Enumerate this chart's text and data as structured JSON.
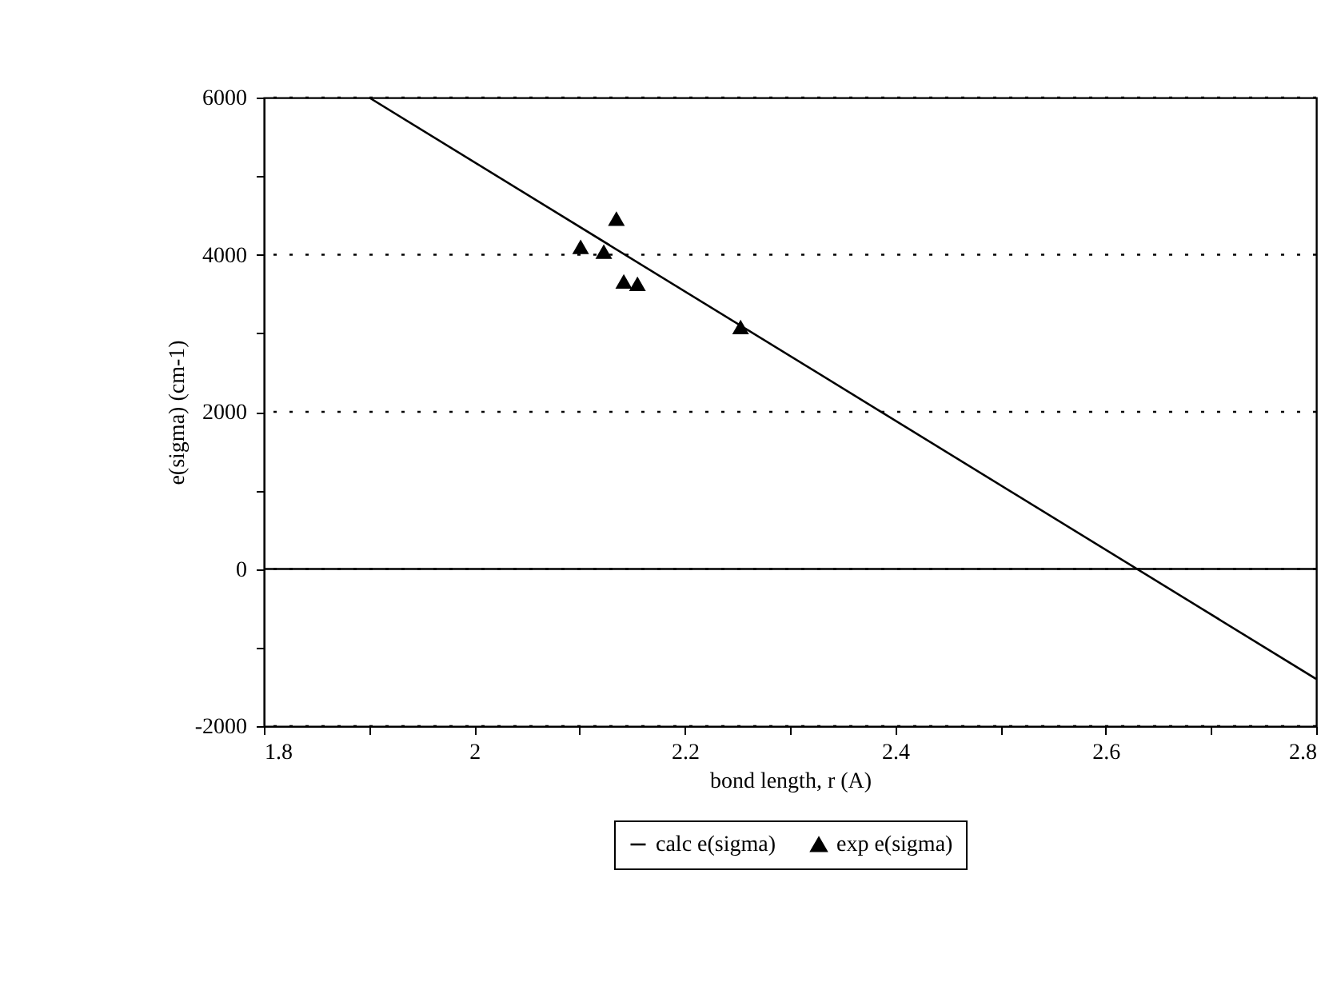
{
  "chart_data": {
    "type": "scatter",
    "xlabel": "bond length, r (A)",
    "ylabel": "e(sigma) (cm-1)",
    "xlim": [
      1.8,
      2.8
    ],
    "ylim": [
      -2000,
      6000
    ],
    "xticks": [
      1.8,
      {
        "value": 1.9,
        "label": null
      },
      2,
      {
        "value": 2.1,
        "label": null
      },
      2.2,
      {
        "value": 2.3,
        "label": null
      },
      2.4,
      {
        "value": 2.5,
        "label": null
      },
      2.6,
      {
        "value": 2.7,
        "label": null
      },
      2.8
    ],
    "yticks": [
      -2000,
      {
        "value": -1000,
        "label": null
      },
      0,
      {
        "value": 1000,
        "label": null
      },
      2000,
      {
        "value": 3000,
        "label": null
      },
      4000,
      {
        "value": 5000,
        "label": null
      },
      6000
    ],
    "grid": "y",
    "legend": "bottom",
    "ref_lines": [
      {
        "axis": "y",
        "value": 0,
        "line_style": "solid",
        "color": "#000000"
      }
    ],
    "series": [
      {
        "name": "calc e(sigma)",
        "type": "line",
        "color": "#000000",
        "marker": "none",
        "x": [
          1.9,
          2.8
        ],
        "values": [
          6000,
          -1400
        ]
      },
      {
        "name": "exp e(sigma)",
        "type": "scatter",
        "color": "#000000",
        "marker": "triangle",
        "x": [
          2.101,
          2.123,
          2.135,
          2.142,
          2.155,
          2.253
        ],
        "values": [
          4100,
          4040,
          4460,
          3660,
          3630,
          3080
        ]
      }
    ]
  }
}
